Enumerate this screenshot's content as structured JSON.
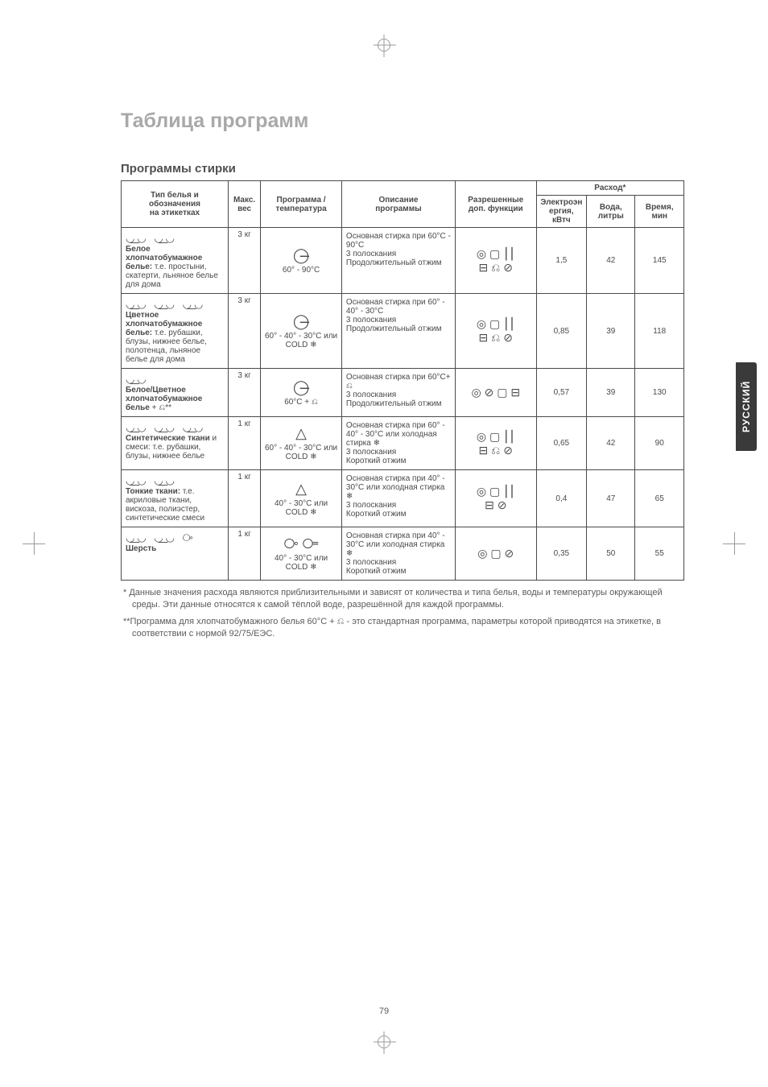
{
  "title": "Таблица программ",
  "section_heading": "Программы стирки",
  "side_tab": "РУССКИЙ",
  "page_number": "79",
  "header": {
    "col1a": "Тип белья и",
    "col1b": "обозначения",
    "col1c": "на этикетках",
    "col2a": "Макс.",
    "col2b": "вес",
    "col3a": "Программа /",
    "col3b": "температура",
    "col4a": "Описание",
    "col4b": "программы",
    "col5a": "Разрешенные",
    "col5b": "доп. функции",
    "consumption": "Расход*",
    "c6a": "Электроэн",
    "c6b": "ергия, кВтч",
    "c7a": "Вода,",
    "c7b": "литры",
    "c8a": "Время,",
    "c8b": "мин"
  },
  "rows": [
    {
      "care_icons": "◡͟◡ ◡͟◡",
      "label_bold": "Белое хлопчатобумажное белье:",
      "label_rest": " т.е. простыни, скатерти, льняное белье для дома",
      "weight": "3 кг",
      "prog_icon": "◯̶",
      "prog_temp": "60° - 90°C",
      "prog_extra": "",
      "desc": "Основная стирка при 60°C - 90°C\n3 полоскания\nПродолжительный отжим",
      "allowed_icons": "◎ ▢ ⎮⎮\n⊟ ⎌ ⊘",
      "energy": "1,5",
      "water": "42",
      "time": "145"
    },
    {
      "care_icons": "◡͟◡ ◡͟◡ ◡͟◡",
      "label_bold": "Цветное хлопчатобумажное белье:",
      "label_rest": " т.е. рубашки, блузы, нижнее белье, полотенца, льняное белье для дома",
      "weight": "3 кг",
      "prog_icon": "◯̶",
      "prog_temp": "60° - 40° - 30°C или COLD ❄",
      "prog_extra": "",
      "desc": "Основная стирка при 60° - 40° - 30°C\n3 полоскания\nПродолжительный отжим",
      "allowed_icons": "◎ ▢ ⎮⎮\n⊟ ⎌ ⊘",
      "energy": "0,85",
      "water": "39",
      "time": "118"
    },
    {
      "care_icons": "◡͟◡",
      "label_bold": "Белое/Цветное хлопчатобумажное белье",
      "label_rest": " + ⎌**",
      "weight": "3 кг",
      "prog_icon": "◯̶",
      "prog_temp": "60°C + ⎌",
      "prog_extra": "",
      "desc": "Основная стирка при 60°C+ ⎌\n3 полоскания\nПродолжительный отжим",
      "allowed_icons": "◎ ⊘ ▢ ⊟",
      "energy": "0,57",
      "water": "39",
      "time": "130"
    },
    {
      "care_icons": "◡͟◡ ◡͟◡ ◡͟◡",
      "label_bold": "Синтетические ткани",
      "label_rest": " и смеси: т.е. рубашки, блузы, нижнее белье",
      "weight": "1 кг",
      "prog_icon": "△",
      "prog_temp": "60° - 40° - 30°C или COLD ❄",
      "prog_extra": "",
      "desc": "Основная стирка при 60° - 40° - 30°C или холодная стирка ❄\n3 полоскания\nКороткий отжим",
      "allowed_icons": "◎ ▢ ⎮⎮\n⊟ ⎌ ⊘",
      "energy": "0,65",
      "water": "42",
      "time": "90"
    },
    {
      "care_icons": "◡͟◡ ◡͟◡",
      "label_bold": "Тонкие ткани:",
      "label_rest": " т.е. акриловые ткани, вискоза, полиэстер, синтетические смеси",
      "weight": "1 кг",
      "prog_icon": "△",
      "prog_temp": "40° - 30°C или COLD ❄",
      "prog_extra": "",
      "desc": "Основная стирка при 40° - 30°C или холодная стирка ❄\n3 полоскания\nКороткий отжим",
      "allowed_icons": "◎ ▢ ⎮⎮\n⊟ ⊘",
      "energy": "0,4",
      "water": "47",
      "time": "65"
    },
    {
      "care_icons": "◡͟◡ ◡͟◡ ⧂",
      "label_bold": "Шерсть",
      "label_rest": "",
      "weight": "1 кг",
      "prog_icon": "⧂ ⧃",
      "prog_temp": "40° - 30°C или COLD ❄",
      "prog_extra": "",
      "desc": "Основная стирка при 40° - 30°C или холодная стирка ❄\n3 полоскания\nКороткий отжим",
      "allowed_icons": "◎ ▢ ⊘",
      "energy": "0,35",
      "water": "50",
      "time": "55"
    }
  ],
  "footnote1": "* Данные значения расхода являются приблизительными и зависят от количества и типа белья, воды и температуры окружающей среды. Эти данные относятся к самой тёплой воде, разрешённой для каждой программы.",
  "footnote2": "**Программа для хлопчатобумажного белья 60°C + ⎌ - это стандартная программа, параметры которой приводятся на этикетке, в соответствии с нормой 92/75/ЕЭС."
}
